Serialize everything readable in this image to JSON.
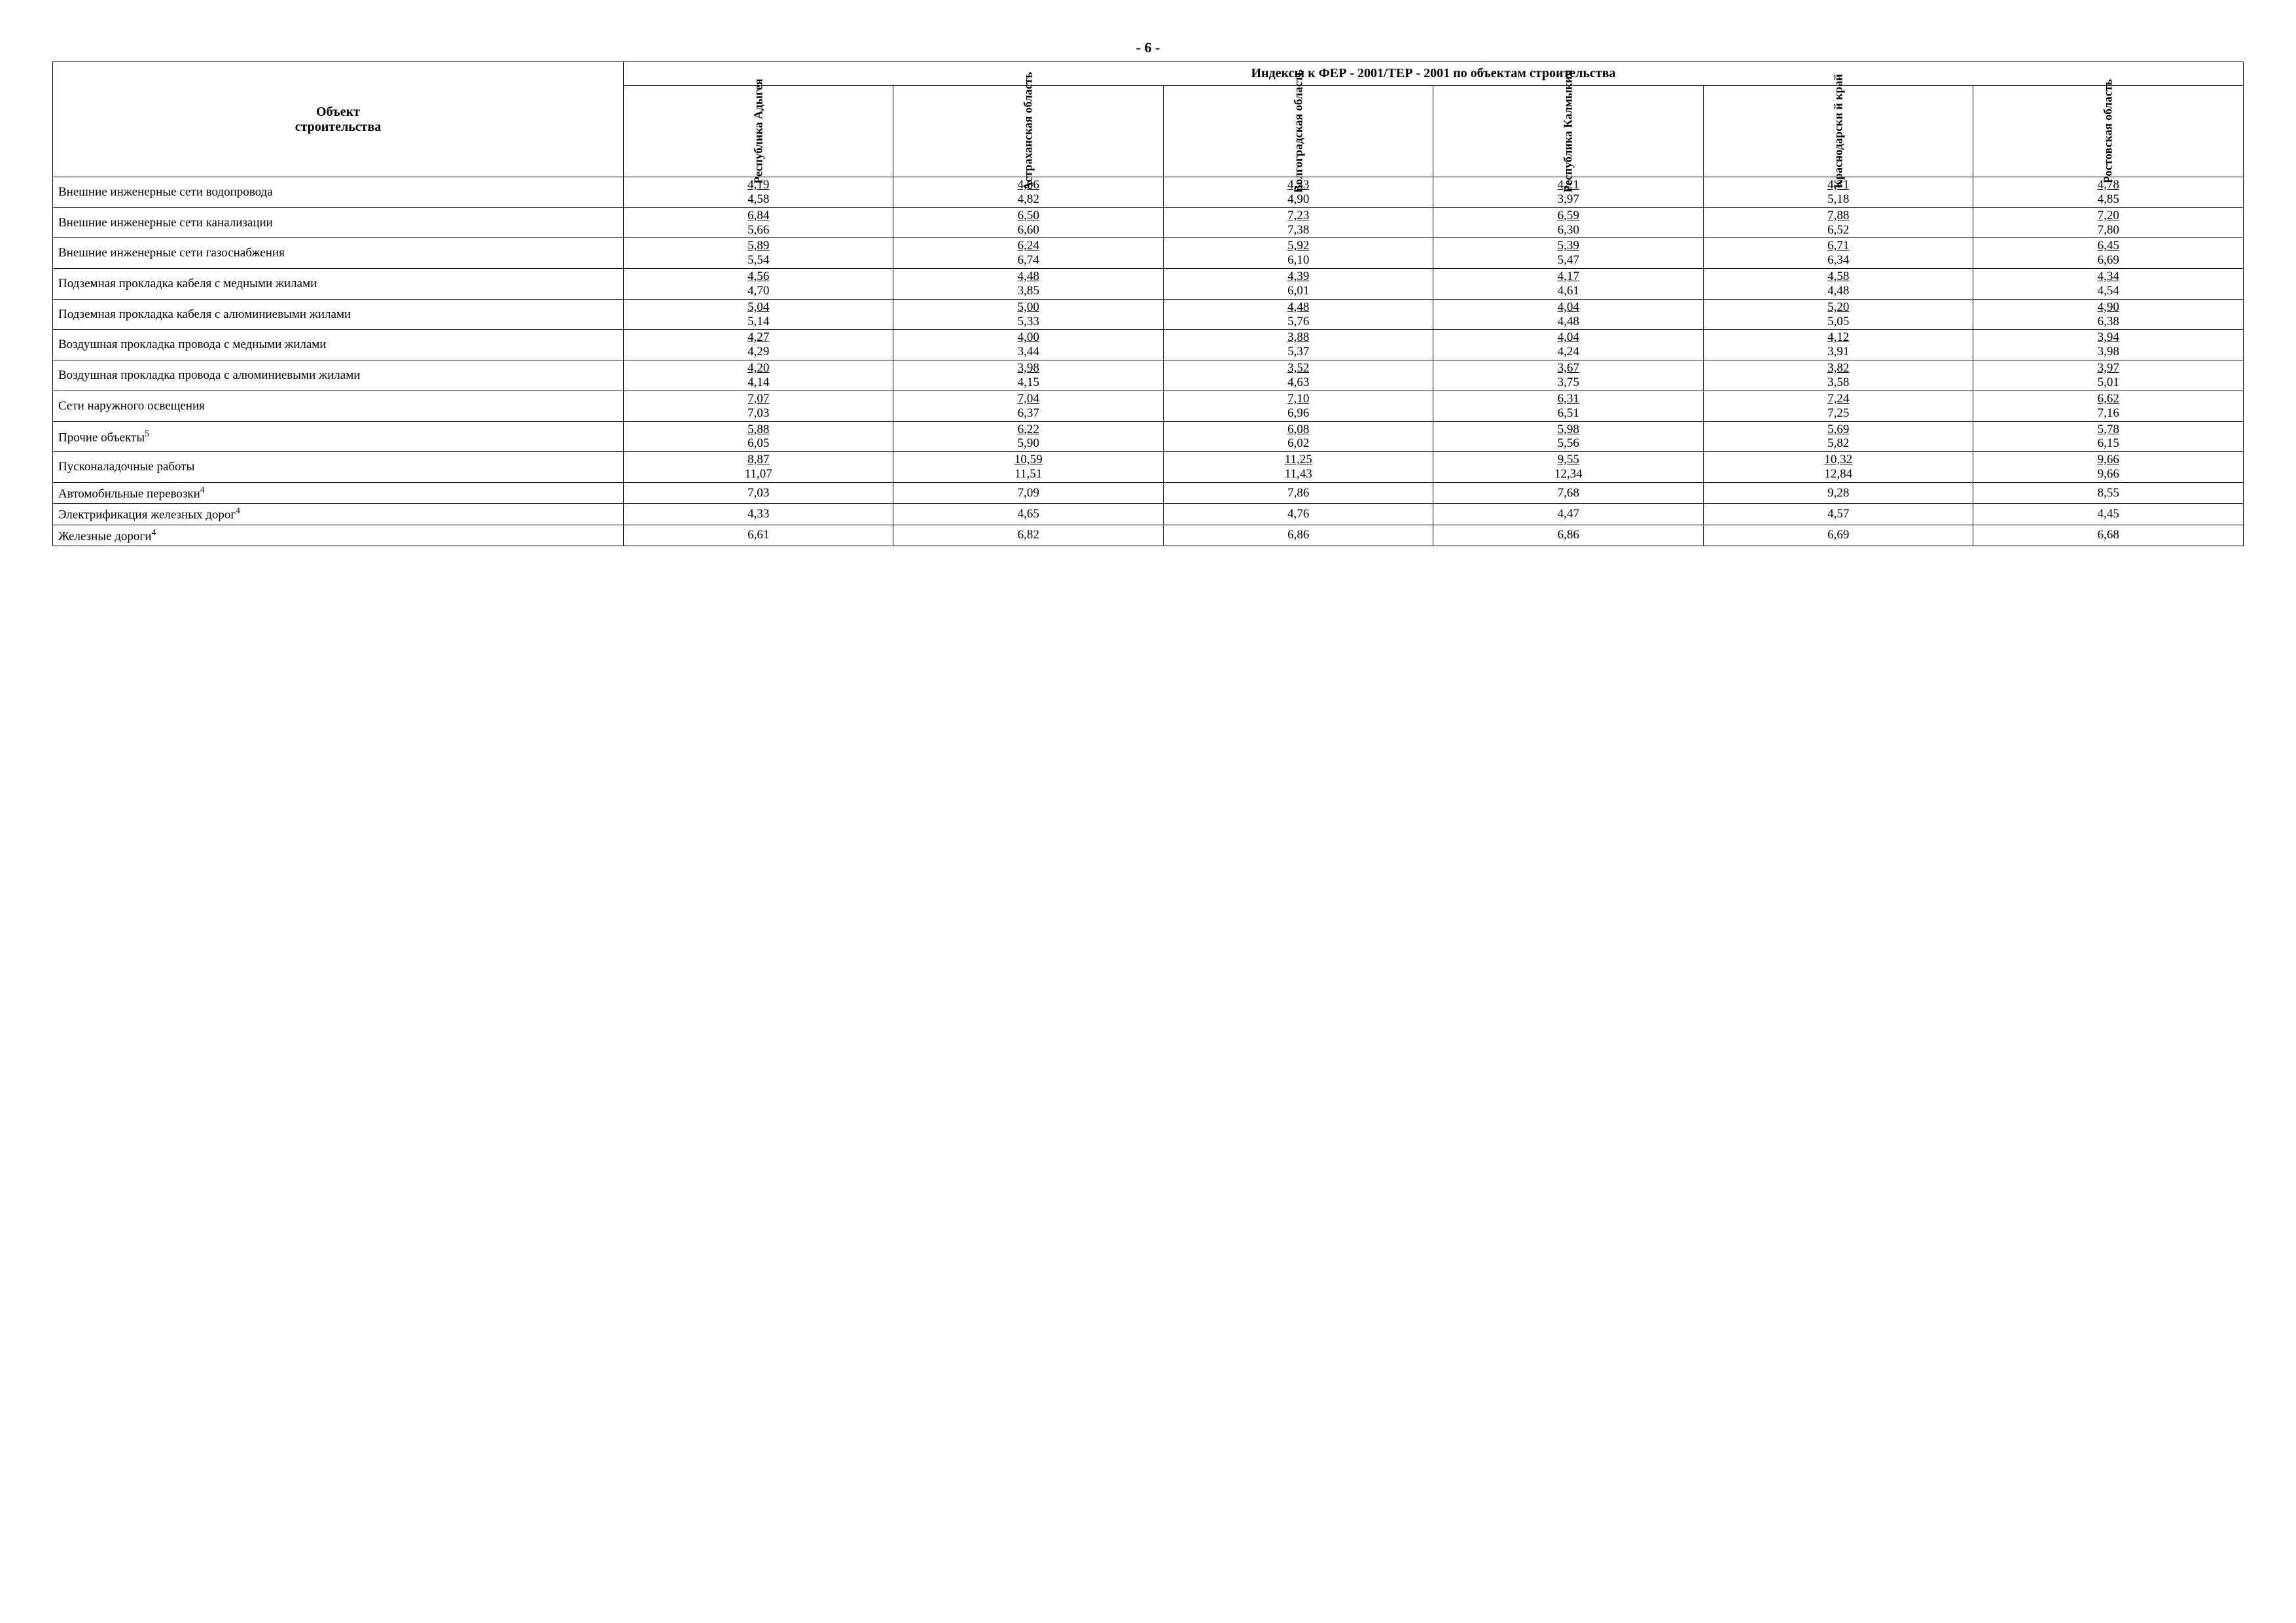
{
  "page_number": "- 6 -",
  "table": {
    "header_main": "Индексы к ФЕР - 2001/ТЕР - 2001 по объектам строительства",
    "header_object": "Объект\nстроительства",
    "columns": [
      "Республика Адыгея",
      "Астраханская область",
      "Волгоградская область",
      "Республика Калмыкия",
      "Краснодарски й край",
      "Ростовская область"
    ],
    "rows": [
      {
        "label": "Внешние инженерные сети водопровода",
        "type": "pair",
        "values": [
          [
            "4,19",
            "4,58"
          ],
          [
            "4,06",
            "4,82"
          ],
          [
            "4,33",
            "4,90"
          ],
          [
            "4,21",
            "3,97"
          ],
          [
            "4,71",
            "5,18"
          ],
          [
            "4,78",
            "4,85"
          ]
        ]
      },
      {
        "label": "Внешние инженерные сети канализации",
        "type": "pair",
        "values": [
          [
            "6,84",
            "5,66"
          ],
          [
            "6,50",
            "6,60"
          ],
          [
            "7,23",
            "7,38"
          ],
          [
            "6,59",
            "6,30"
          ],
          [
            "7,88",
            "6,52"
          ],
          [
            "7,20",
            "7,80"
          ]
        ]
      },
      {
        "label": "Внешние инженерные сети газоснабжения",
        "type": "pair",
        "values": [
          [
            "5,89",
            "5,54"
          ],
          [
            "6,24",
            "6,74"
          ],
          [
            "5,92",
            "6,10"
          ],
          [
            "5,39",
            "5,47"
          ],
          [
            "6,71",
            "6,34"
          ],
          [
            "6,45",
            "6,69"
          ]
        ]
      },
      {
        "label": "Подземная прокладка кабеля с медными жилами",
        "type": "pair",
        "values": [
          [
            "4,56",
            "4,70"
          ],
          [
            "4,48",
            "3,85"
          ],
          [
            "4,39",
            "6,01"
          ],
          [
            "4,17",
            "4,61"
          ],
          [
            "4,58",
            "4,48"
          ],
          [
            "4,34",
            "4,54"
          ]
        ]
      },
      {
        "label": "Подземная прокладка кабеля с алюминиевыми жилами",
        "type": "pair",
        "values": [
          [
            "5,04",
            "5,14"
          ],
          [
            "5,00",
            "5,33"
          ],
          [
            "4,48",
            "5,76"
          ],
          [
            "4,04",
            "4,48"
          ],
          [
            "5,20",
            "5,05"
          ],
          [
            "4,90",
            "6,38"
          ]
        ]
      },
      {
        "label": "Воздушная прокладка провода с медными жилами",
        "type": "pair",
        "values": [
          [
            "4,27",
            "4,29"
          ],
          [
            "4,00",
            "3,44"
          ],
          [
            "3,88",
            "5,37"
          ],
          [
            "4,04",
            "4,24"
          ],
          [
            "4,12",
            "3,91"
          ],
          [
            "3,94",
            "3,98"
          ]
        ]
      },
      {
        "label": "Воздушная прокладка провода с алюминиевыми жилами",
        "type": "pair",
        "values": [
          [
            "4,20",
            "4,14"
          ],
          [
            "3,98",
            "4,15"
          ],
          [
            "3,52",
            "4,63"
          ],
          [
            "3,67",
            "3,75"
          ],
          [
            "3,82",
            "3,58"
          ],
          [
            "3,97",
            "5,01"
          ]
        ]
      },
      {
        "label": "Сети наружного освещения",
        "type": "pair",
        "values": [
          [
            "7,07",
            "7,03"
          ],
          [
            "7,04",
            "6,37"
          ],
          [
            "7,10",
            "6,96"
          ],
          [
            "6,31",
            "6,51"
          ],
          [
            "7,24",
            "7,25"
          ],
          [
            "6,62",
            "7,16"
          ]
        ]
      },
      {
        "label": "Прочие объекты",
        "sup": "5",
        "type": "pair",
        "values": [
          [
            "5,88",
            "6,05"
          ],
          [
            "6,22",
            "5,90"
          ],
          [
            "6,08",
            "6,02"
          ],
          [
            "5,98",
            "5,56"
          ],
          [
            "5,69",
            "5,82"
          ],
          [
            "5,78",
            "6,15"
          ]
        ]
      },
      {
        "label": "Пусконаладочные работы",
        "type": "pair",
        "values": [
          [
            "8,87",
            "11,07"
          ],
          [
            "10,59",
            "11,51"
          ],
          [
            "11,25",
            "11,43"
          ],
          [
            "9,55",
            "12,34"
          ],
          [
            "10,32",
            "12,84"
          ],
          [
            "9,66",
            "9,66"
          ]
        ]
      },
      {
        "label": "Автомобильные перевозки",
        "sup": "4",
        "type": "single",
        "values": [
          "7,03",
          "7,09",
          "7,86",
          "7,68",
          "9,28",
          "8,55"
        ]
      },
      {
        "label": "Электрификация железных дорог",
        "sup": "4",
        "type": "single",
        "values": [
          "4,33",
          "4,65",
          "4,76",
          "4,47",
          "4,57",
          "4,45"
        ]
      },
      {
        "label": "Железные дороги",
        "sup": "4",
        "type": "single",
        "values": [
          "6,61",
          "6,82",
          "6,86",
          "6,86",
          "6,69",
          "6,68"
        ]
      }
    ],
    "style": {
      "border_color": "#000000",
      "background_color": "#ffffff",
      "text_color": "#000000",
      "font_family": "Times New Roman",
      "header_fontsize_pt": 15,
      "body_fontsize_pt": 14
    }
  }
}
